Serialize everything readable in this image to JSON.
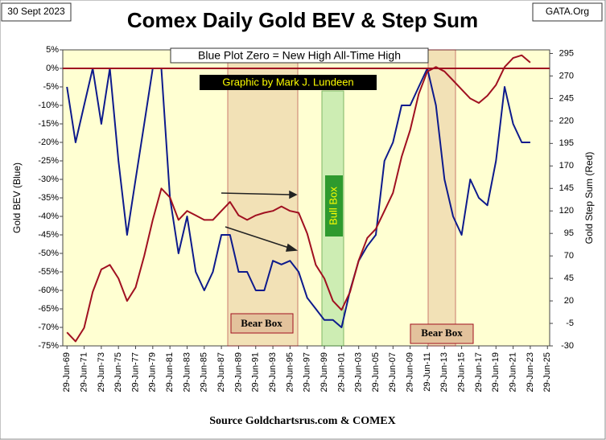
{
  "chart_data": {
    "type": "line",
    "title": "Comex Daily Gold BEV & Step Sum",
    "date_label": "30 Sept 2023",
    "source_tag": "GATA.Org",
    "source": "Source Goldchartsrus.com & COMEX",
    "note": "Blue Plot Zero = New High All-Time High",
    "credit": "Graphic by Mark J. Lundeen",
    "box_labels": [
      "Bear Box",
      "Bull Box",
      "Bear Box"
    ],
    "ylabel": "Gold BEV   (Blue)",
    "y2label": "Gold Step Sum   (Red)",
    "grid": false,
    "x": [
      "1969-06-29",
      "1970-06-29",
      "1971-06-29",
      "1972-06-29",
      "1973-06-29",
      "1974-06-29",
      "1975-06-29",
      "1976-06-29",
      "1977-06-29",
      "1978-06-29",
      "1979-06-29",
      "1980-06-29",
      "1981-06-29",
      "1982-06-29",
      "1983-06-29",
      "1984-06-29",
      "1985-06-29",
      "1986-06-29",
      "1987-06-29",
      "1988-06-29",
      "1989-06-29",
      "1990-06-29",
      "1991-06-29",
      "1992-06-29",
      "1993-06-29",
      "1994-06-29",
      "1995-06-29",
      "1996-06-29",
      "1997-06-29",
      "1998-06-29",
      "1999-06-29",
      "2000-06-29",
      "2001-06-29",
      "2002-06-29",
      "2003-06-29",
      "2004-06-29",
      "2005-06-29",
      "2006-06-29",
      "2007-06-29",
      "2008-06-29",
      "2009-06-29",
      "2010-06-29",
      "2011-06-29",
      "2012-06-29",
      "2013-06-29",
      "2014-06-29",
      "2015-06-29",
      "2016-06-29",
      "2017-06-29",
      "2018-06-29",
      "2019-06-29",
      "2020-06-29",
      "2021-06-29",
      "2022-06-29",
      "2023-06-29"
    ],
    "series": [
      {
        "name": "Gold BEV",
        "color": "#0d1a8c",
        "axis": "y",
        "values": [
          -5,
          -20,
          -10,
          0,
          -15,
          0,
          -25,
          -45,
          -30,
          -15,
          0,
          0,
          -35,
          -50,
          -40,
          -55,
          -60,
          -55,
          -45,
          -45,
          -55,
          -55,
          -60,
          -60,
          -52,
          -53,
          -52,
          -55,
          -62,
          -65,
          -68,
          -68,
          -70,
          -60,
          -52,
          -48,
          -45,
          -25,
          -20,
          -10,
          -10,
          -5,
          0,
          -10,
          -30,
          -40,
          -45,
          -30,
          -35,
          -37,
          -25,
          -5,
          -15,
          -20,
          -20
        ]
      },
      {
        "name": "Gold Step Sum",
        "color": "#a01020",
        "axis": "y2",
        "values": [
          -15,
          -25,
          -10,
          30,
          55,
          60,
          45,
          20,
          35,
          70,
          110,
          145,
          135,
          110,
          120,
          115,
          110,
          110,
          120,
          130,
          115,
          110,
          115,
          118,
          120,
          125,
          120,
          118,
          95,
          60,
          45,
          20,
          10,
          30,
          65,
          90,
          100,
          120,
          140,
          180,
          210,
          250,
          275,
          280,
          275,
          265,
          255,
          245,
          240,
          248,
          260,
          280,
          290,
          293,
          285
        ]
      }
    ],
    "xlim": [
      "1969-01-01",
      "2025-10-01"
    ],
    "xticks": [
      {
        "value": "1969-06-29",
        "label": "29-Jun-69"
      },
      {
        "value": "1971-06-29",
        "label": "29-Jun-71"
      },
      {
        "value": "1973-06-29",
        "label": "29-Jun-73"
      },
      {
        "value": "1975-06-29",
        "label": "29-Jun-75"
      },
      {
        "value": "1977-06-29",
        "label": "29-Jun-77"
      },
      {
        "value": "1979-06-29",
        "label": "29-Jun-79"
      },
      {
        "value": "1981-06-29",
        "label": "29-Jun-81"
      },
      {
        "value": "1983-06-29",
        "label": "29-Jun-83"
      },
      {
        "value": "1985-06-29",
        "label": "29-Jun-85"
      },
      {
        "value": "1987-06-29",
        "label": "29-Jun-87"
      },
      {
        "value": "1989-06-29",
        "label": "29-Jun-89"
      },
      {
        "value": "1991-06-29",
        "label": "29-Jun-91"
      },
      {
        "value": "1993-06-29",
        "label": "29-Jun-93"
      },
      {
        "value": "1995-06-29",
        "label": "29-Jun-95"
      },
      {
        "value": "1997-06-29",
        "label": "29-Jun-97"
      },
      {
        "value": "1999-06-29",
        "label": "29-Jun-99"
      },
      {
        "value": "2001-06-29",
        "label": "29-Jun-01"
      },
      {
        "value": "2003-06-29",
        "label": "29-Jun-03"
      },
      {
        "value": "2005-06-29",
        "label": "29-Jun-05"
      },
      {
        "value": "2007-06-29",
        "label": "29-Jun-07"
      },
      {
        "value": "2009-06-29",
        "label": "29-Jun-09"
      },
      {
        "value": "2011-06-29",
        "label": "29-Jun-11"
      },
      {
        "value": "2013-06-29",
        "label": "29-Jun-13"
      },
      {
        "value": "2015-06-29",
        "label": "29-Jun-15"
      },
      {
        "value": "2017-06-29",
        "label": "29-Jun-17"
      },
      {
        "value": "2019-06-29",
        "label": "29-Jun-19"
      },
      {
        "value": "2021-06-29",
        "label": "29-Jun-21"
      },
      {
        "value": "2023-06-29",
        "label": "29-Jun-23"
      },
      {
        "value": "2025-06-29",
        "label": "29-Jun-25"
      }
    ],
    "ylim": [
      -75,
      5
    ],
    "yticks": [
      {
        "value": 5,
        "label": "5%"
      },
      {
        "value": 0,
        "label": "0%"
      },
      {
        "value": -5,
        "label": "-5%"
      },
      {
        "value": -10,
        "label": "-10%"
      },
      {
        "value": -15,
        "label": "-15%"
      },
      {
        "value": -20,
        "label": "-20%"
      },
      {
        "value": -25,
        "label": "-25%"
      },
      {
        "value": -30,
        "label": "-30%"
      },
      {
        "value": -35,
        "label": "-35%"
      },
      {
        "value": -40,
        "label": "-40%"
      },
      {
        "value": -45,
        "label": "-45%"
      },
      {
        "value": -50,
        "label": "-50%"
      },
      {
        "value": -55,
        "label": "-55%"
      },
      {
        "value": -60,
        "label": "-60%"
      },
      {
        "value": -65,
        "label": "-65%"
      },
      {
        "value": -70,
        "label": "-70%"
      },
      {
        "value": -75,
        "label": "-75%"
      }
    ],
    "y2lim": [
      -30,
      299
    ],
    "y2ticks": [
      -30,
      -5,
      20,
      45,
      70,
      95,
      120,
      145,
      170,
      195,
      220,
      245,
      270,
      295
    ]
  }
}
